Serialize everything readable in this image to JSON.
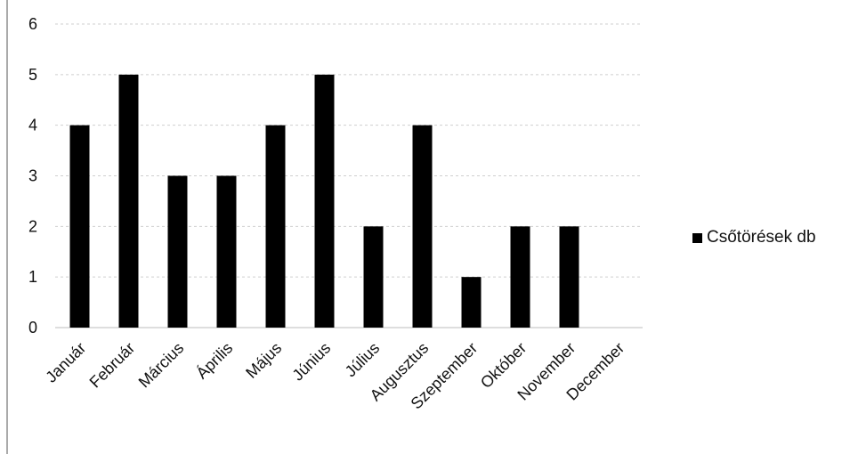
{
  "chart_data": {
    "type": "bar",
    "title": "",
    "xlabel": "",
    "ylabel": "",
    "categories": [
      "Január",
      "Február",
      "Március",
      "Április",
      "Május",
      "Június",
      "Július",
      "Augusztus",
      "Szeptember",
      "Október",
      "November",
      "December"
    ],
    "series": [
      {
        "name": "Csőtörések db",
        "values": [
          4,
          5,
          3,
          3,
          4,
          5,
          2,
          4,
          1,
          2,
          2,
          null
        ],
        "color": "#000000"
      }
    ],
    "ylim": [
      0,
      6
    ],
    "yticks": [
      "0",
      "1",
      "2",
      "3",
      "4",
      "5",
      "6"
    ],
    "grid": true,
    "legend_position": "right"
  }
}
